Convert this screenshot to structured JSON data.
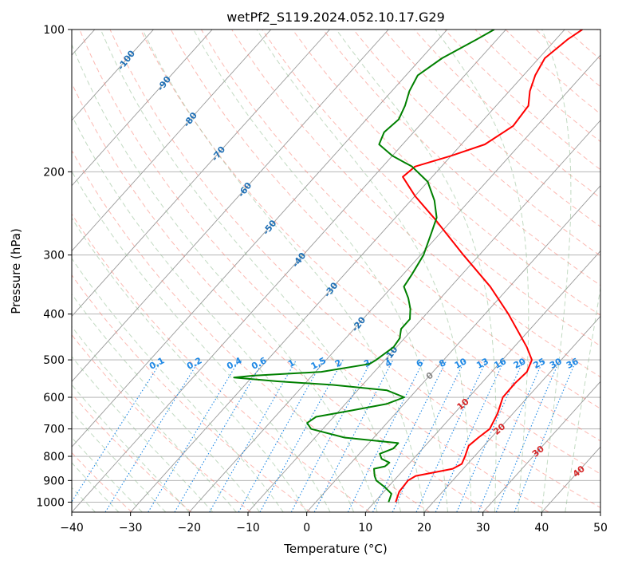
{
  "chart_data": {
    "type": "line",
    "subtype": "skew-t log-p diagram",
    "title": "wetPf2_S119.2024.052.10.17.G29",
    "xlabel": "Temperature (°C)",
    "ylabel": "Pressure (hPa)",
    "xlim": [
      -40,
      50
    ],
    "ylim": [
      1050,
      100
    ],
    "y_scale": "log",
    "x_ticks": [
      -40,
      -30,
      -20,
      -10,
      0,
      10,
      20,
      30,
      40,
      50
    ],
    "x_tick_labels": [
      "−40",
      "−30",
      "−20",
      "−10",
      "0",
      "10",
      "20",
      "30",
      "40",
      "50"
    ],
    "y_ticks": [
      100,
      200,
      300,
      400,
      500,
      600,
      700,
      800,
      900,
      1000
    ],
    "y_tick_labels": [
      "100",
      "200",
      "300",
      "400",
      "500",
      "600",
      "700",
      "800",
      "900",
      "1000"
    ],
    "grid": true,
    "colors": {
      "temperature": "#ff0000",
      "dewpoint": "#008000",
      "isotherm": "#999999",
      "dry_adiabat": "#fa8072",
      "moist_adiabat": "#8fbc8f",
      "mixing_ratio": "#1e88e5",
      "isotherm_label": "#1f6fb5",
      "mixing_ratio_label": "#1e88e5",
      "moist_label": "#d62728",
      "zero_label": "#888888"
    },
    "series": [
      {
        "key": "temperature",
        "points": [
          {
            "p": 1000,
            "t": 13.6
          },
          {
            "p": 950,
            "t": 12.6
          },
          {
            "p": 900,
            "t": 12.4
          },
          {
            "p": 880,
            "t": 13.0
          },
          {
            "p": 860,
            "t": 16.5
          },
          {
            "p": 850,
            "t": 18.2
          },
          {
            "p": 830,
            "t": 19.0
          },
          {
            "p": 800,
            "t": 18.4
          },
          {
            "p": 760,
            "t": 17.4
          },
          {
            "p": 730,
            "t": 17.8
          },
          {
            "p": 700,
            "t": 18.4
          },
          {
            "p": 650,
            "t": 17.4
          },
          {
            "p": 600,
            "t": 15.8
          },
          {
            "p": 560,
            "t": 15.7
          },
          {
            "p": 530,
            "t": 16.0
          },
          {
            "p": 500,
            "t": 15.0
          },
          {
            "p": 470,
            "t": 12.2
          },
          {
            "p": 450,
            "t": 10.0
          },
          {
            "p": 400,
            "t": 4.0
          },
          {
            "p": 350,
            "t": -3.3
          },
          {
            "p": 300,
            "t": -12.7
          },
          {
            "p": 250,
            "t": -23.5
          },
          {
            "p": 225,
            "t": -30.0
          },
          {
            "p": 205,
            "t": -35.0
          },
          {
            "p": 195,
            "t": -34.5
          },
          {
            "p": 185,
            "t": -30.0
          },
          {
            "p": 175,
            "t": -26.0
          },
          {
            "p": 160,
            "t": -24.0
          },
          {
            "p": 145,
            "t": -24.5
          },
          {
            "p": 135,
            "t": -26.5
          },
          {
            "p": 125,
            "t": -28.0
          },
          {
            "p": 115,
            "t": -29.0
          },
          {
            "p": 105,
            "t": -28.0
          },
          {
            "p": 100,
            "t": -27.0
          }
        ]
      },
      {
        "key": "dewpoint",
        "points": [
          {
            "p": 1000,
            "t": 12.4
          },
          {
            "p": 960,
            "t": 11.6
          },
          {
            "p": 930,
            "t": 9.5
          },
          {
            "p": 900,
            "t": 7.0
          },
          {
            "p": 880,
            "t": 6.0
          },
          {
            "p": 850,
            "t": 4.8
          },
          {
            "p": 840,
            "t": 6.3
          },
          {
            "p": 825,
            "t": 6.5
          },
          {
            "p": 810,
            "t": 4.6
          },
          {
            "p": 790,
            "t": 3.5
          },
          {
            "p": 770,
            "t": 5.0
          },
          {
            "p": 750,
            "t": 5.0
          },
          {
            "p": 730,
            "t": -5.0
          },
          {
            "p": 700,
            "t": -12.0
          },
          {
            "p": 680,
            "t": -13.6
          },
          {
            "p": 660,
            "t": -13.0
          },
          {
            "p": 640,
            "t": -8.0
          },
          {
            "p": 620,
            "t": -3.0
          },
          {
            "p": 600,
            "t": -1.0
          },
          {
            "p": 580,
            "t": -5.0
          },
          {
            "p": 565,
            "t": -15.0
          },
          {
            "p": 555,
            "t": -25.0
          },
          {
            "p": 545,
            "t": -33.0
          },
          {
            "p": 540,
            "t": -30.0
          },
          {
            "p": 530,
            "t": -19.0
          },
          {
            "p": 510,
            "t": -12.0
          },
          {
            "p": 500,
            "t": -11.5
          },
          {
            "p": 470,
            "t": -10.5
          },
          {
            "p": 450,
            "t": -10.8
          },
          {
            "p": 430,
            "t": -12.0
          },
          {
            "p": 410,
            "t": -12.0
          },
          {
            "p": 390,
            "t": -13.5
          },
          {
            "p": 370,
            "t": -15.5
          },
          {
            "p": 350,
            "t": -18.0
          },
          {
            "p": 330,
            "t": -18.5
          },
          {
            "p": 300,
            "t": -19.5
          },
          {
            "p": 270,
            "t": -21.5
          },
          {
            "p": 250,
            "t": -23.0
          },
          {
            "p": 230,
            "t": -26.0
          },
          {
            "p": 210,
            "t": -30.0
          },
          {
            "p": 195,
            "t": -35.0
          },
          {
            "p": 185,
            "t": -40.0
          },
          {
            "p": 175,
            "t": -44.0
          },
          {
            "p": 165,
            "t": -45.0
          },
          {
            "p": 155,
            "t": -44.5
          },
          {
            "p": 145,
            "t": -45.5
          },
          {
            "p": 135,
            "t": -47.0
          },
          {
            "p": 125,
            "t": -48.0
          },
          {
            "p": 115,
            "t": -46.5
          },
          {
            "p": 105,
            "t": -43.5
          },
          {
            "p": 100,
            "t": -42.0
          }
        ]
      }
    ],
    "isotherm_labels": [
      {
        "text": "-100",
        "t": -100,
        "p": 116
      },
      {
        "text": "-90",
        "t": -90,
        "p": 130
      },
      {
        "text": "-80",
        "t": -80,
        "p": 155
      },
      {
        "text": "-70",
        "t": -70,
        "p": 183
      },
      {
        "text": "-60",
        "t": -60,
        "p": 218
      },
      {
        "text": "-50",
        "t": -50,
        "p": 262
      },
      {
        "text": "-40",
        "t": -40,
        "p": 307
      },
      {
        "text": "-30",
        "t": -30,
        "p": 355
      },
      {
        "text": "-20",
        "t": -20,
        "p": 420
      },
      {
        "text": "-10",
        "t": -10,
        "p": 485
      }
    ],
    "mixing_ratio_labels": [
      "0.1",
      "0.2",
      "0.4",
      "0.6",
      "1",
      "1.5",
      "2",
      "3",
      "4",
      "6",
      "8",
      "10",
      "13",
      "16",
      "20",
      "25",
      "30",
      "36"
    ],
    "moist_adiabat_labels": [
      {
        "text": "0",
        "t": 0,
        "p": 540
      },
      {
        "text": "10",
        "t": 10,
        "p": 620
      },
      {
        "text": "20",
        "t": 20,
        "p": 700
      },
      {
        "text": "30",
        "t": 30,
        "p": 780
      },
      {
        "text": "40",
        "t": 40,
        "p": 860
      }
    ]
  }
}
